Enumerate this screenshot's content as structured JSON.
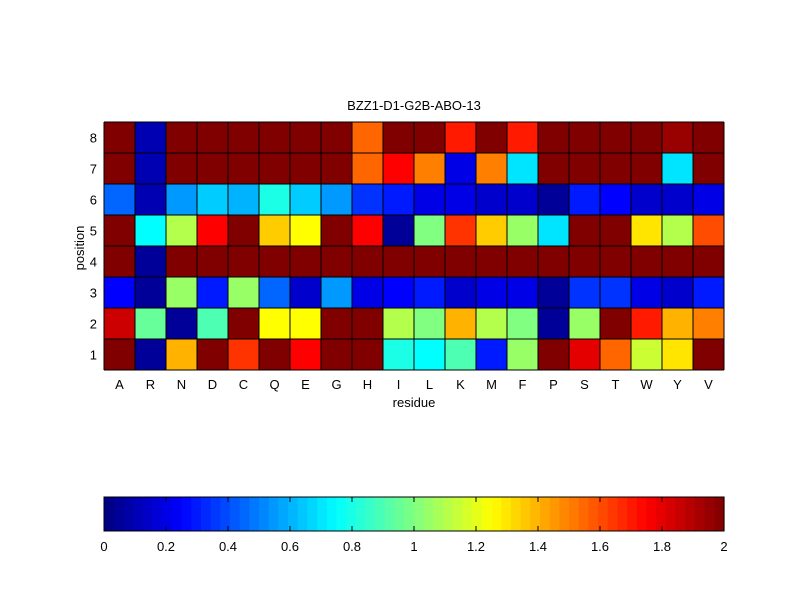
{
  "chart_data": {
    "type": "heatmap",
    "title": "BZZ1-D1-G2B-ABO-13",
    "xlabel": "residue",
    "ylabel": "position",
    "x_categories": [
      "A",
      "R",
      "N",
      "D",
      "C",
      "Q",
      "E",
      "G",
      "H",
      "I",
      "L",
      "K",
      "M",
      "F",
      "P",
      "S",
      "T",
      "W",
      "Y",
      "V"
    ],
    "y_categories": [
      "1",
      "2",
      "3",
      "4",
      "5",
      "6",
      "7",
      "8"
    ],
    "values": [
      [
        2.0,
        0.05,
        1.4,
        2.0,
        1.65,
        2.0,
        1.75,
        2.0,
        2.0,
        0.8,
        0.75,
        0.9,
        0.3,
        1.05,
        2.0,
        1.8,
        1.55,
        1.15,
        1.3,
        2.0
      ],
      [
        1.85,
        0.95,
        0.05,
        0.9,
        2.0,
        1.25,
        1.25,
        2.0,
        2.0,
        1.1,
        1.0,
        1.4,
        1.1,
        1.0,
        0.05,
        1.05,
        2.0,
        1.7,
        1.4,
        1.5
      ],
      [
        0.25,
        0.05,
        1.05,
        0.3,
        1.05,
        0.45,
        0.15,
        0.55,
        0.2,
        0.25,
        0.3,
        0.15,
        0.2,
        0.2,
        0.05,
        0.35,
        0.35,
        0.2,
        0.15,
        0.3
      ],
      [
        2.0,
        0.05,
        2.0,
        2.0,
        2.0,
        2.0,
        2.0,
        2.0,
        2.0,
        2.0,
        2.0,
        2.0,
        2.0,
        2.0,
        2.0,
        2.0,
        2.0,
        2.0,
        2.0,
        2.0
      ],
      [
        2.0,
        0.75,
        1.1,
        1.75,
        2.0,
        1.35,
        1.25,
        2.0,
        1.75,
        0.05,
        1.0,
        1.65,
        1.35,
        1.05,
        0.7,
        2.0,
        2.0,
        1.3,
        1.1,
        1.6
      ],
      [
        0.45,
        0.1,
        0.55,
        0.65,
        0.6,
        0.8,
        0.65,
        0.55,
        0.35,
        0.3,
        0.2,
        0.2,
        0.15,
        0.15,
        0.05,
        0.3,
        0.25,
        0.15,
        0.15,
        0.2
      ],
      [
        2.0,
        0.1,
        2.0,
        2.0,
        2.0,
        2.0,
        2.0,
        2.0,
        1.55,
        1.75,
        1.5,
        0.2,
        1.5,
        0.7,
        2.0,
        2.0,
        2.0,
        2.0,
        0.7,
        2.0
      ],
      [
        2.0,
        0.1,
        2.0,
        2.0,
        2.0,
        2.0,
        2.0,
        2.0,
        1.55,
        2.0,
        2.0,
        1.7,
        2.0,
        1.7,
        2.0,
        2.0,
        2.0,
        2.0,
        1.95,
        2.0
      ]
    ],
    "colormap": "jet",
    "clim": [
      0,
      2
    ],
    "colorbar": {
      "placement": "bottom",
      "ticks": [
        0,
        0.2,
        0.4,
        0.6,
        0.8,
        1,
        1.2,
        1.4,
        1.6,
        1.8,
        2
      ],
      "tick_labels": [
        "0",
        "0.2",
        "0.4",
        "0.6",
        "0.8",
        "1",
        "1.2",
        "1.4",
        "1.6",
        "1.8",
        "2"
      ],
      "levels": 64
    },
    "grid": true,
    "grid_color": "#000000"
  }
}
